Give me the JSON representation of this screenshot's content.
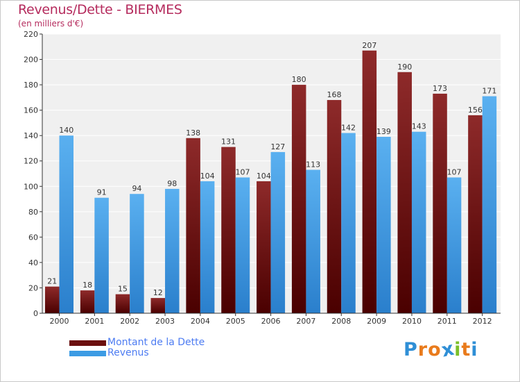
{
  "header": {
    "title": "Revenus/Dette - BIERMES",
    "subtitle": "(en milliers d'€)"
  },
  "colors": {
    "dette": "#7a1414",
    "revenus": "#3c9be4",
    "legend_text": "#4d7cf2",
    "title": "#b52b5d"
  },
  "legend": {
    "items": [
      {
        "label": "Montant de la Dette",
        "color": "#6b0f0f"
      },
      {
        "label": "Revenus",
        "color": "#3c9be4"
      }
    ]
  },
  "logo": {
    "letters": [
      "P",
      "r",
      "o",
      "x",
      "i",
      "t",
      "i"
    ],
    "colors": [
      "#2f8fd6",
      "#e97b1c",
      "#e97b1c",
      "#2f8fd6",
      "#7bbf2a",
      "#e97b1c",
      "#2f8fd6"
    ]
  },
  "chart_data": {
    "type": "bar",
    "categories": [
      "2000",
      "2001",
      "2002",
      "2003",
      "2004",
      "2005",
      "2006",
      "2007",
      "2008",
      "2009",
      "2010",
      "2011",
      "2012"
    ],
    "series": [
      {
        "name": "Montant de la Dette",
        "values": [
          21,
          18,
          15,
          12,
          138,
          131,
          104,
          180,
          168,
          207,
          190,
          173,
          156
        ]
      },
      {
        "name": "Revenus",
        "values": [
          140,
          91,
          94,
          98,
          104,
          107,
          127,
          113,
          142,
          139,
          143,
          107,
          171
        ]
      }
    ],
    "ylim": [
      0,
      220
    ],
    "yticks": [
      0,
      20,
      40,
      60,
      80,
      100,
      120,
      140,
      160,
      180,
      200,
      220
    ],
    "grid": true,
    "legend_position": "bottom-left"
  }
}
